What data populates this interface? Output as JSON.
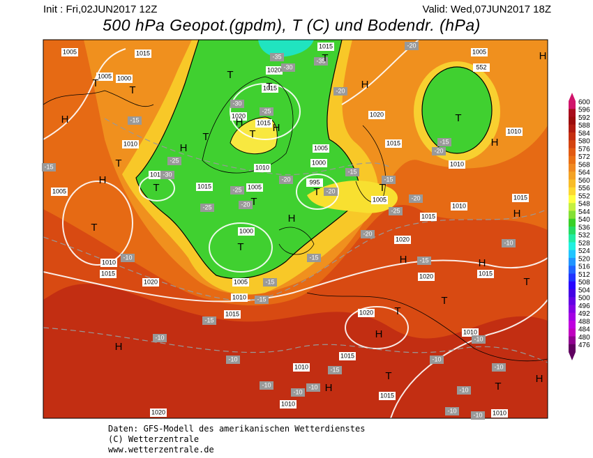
{
  "header": {
    "init": "Init : Fri,02JUN2017 12Z",
    "valid": "Valid: Wed,07JUN2017 18Z",
    "title": "500 hPa Geopot.(gpdm), T (C) und Bodendr. (hPa)"
  },
  "colorbar": {
    "ticks": [
      600,
      596,
      592,
      588,
      584,
      580,
      576,
      572,
      568,
      564,
      560,
      556,
      552,
      548,
      544,
      540,
      536,
      532,
      528,
      524,
      520,
      516,
      512,
      508,
      504,
      500,
      496,
      492,
      488,
      484,
      480,
      476
    ],
    "colors": [
      "#d0146a",
      "#a80c1c",
      "#9c0c0c",
      "#b01a10",
      "#c42e10",
      "#d44410",
      "#e25a12",
      "#ea7014",
      "#f08820",
      "#f4a224",
      "#f8bc28",
      "#fcd830",
      "#ffff40",
      "#c4f040",
      "#84e034",
      "#38d028",
      "#24dc64",
      "#20eca4",
      "#20f0e0",
      "#20c4ff",
      "#2094ff",
      "#2064ff",
      "#2034ff",
      "#2804ff",
      "#4400e4",
      "#6400e4",
      "#8400e4",
      "#a400e4",
      "#c000e0",
      "#c000c0",
      "#900090",
      "#600060"
    ]
  },
  "map": {
    "pressure_labels": [
      1005,
      1015,
      1005,
      1000,
      1015,
      1020,
      1015,
      1020,
      1015,
      1010,
      1005,
      1000,
      1010,
      1010,
      1015,
      1005,
      995,
      1005,
      1000,
      1010,
      1015,
      1020,
      1005,
      1010,
      1015,
      1020,
      1010,
      1010,
      1015,
      1015,
      1010,
      1020,
      1010,
      1005,
      1020,
      1015,
      1010,
      1010,
      1010,
      1015,
      1015,
      1020,
      1020,
      1015,
      1005,
      552
    ],
    "temperature_labels": [
      -35,
      -30,
      -35,
      -20,
      -30,
      -25,
      -15,
      -25,
      -30,
      -20,
      -25,
      -15,
      -20,
      -25,
      -20,
      -20,
      -25,
      -20,
      -15,
      -10,
      -15,
      -15,
      -15,
      -10,
      -10,
      -15,
      -10,
      -10,
      -10,
      -15,
      -10,
      -10,
      -10,
      -10,
      -15,
      -20,
      -20,
      -15,
      -10,
      -10,
      -10,
      -15
    ],
    "pressure_centers": [
      "H",
      "T",
      "T",
      "T",
      "H",
      "T",
      "T",
      "H",
      "T",
      "T",
      "T",
      "T",
      "H",
      "H",
      "T",
      "T",
      "H",
      "T",
      "T",
      "H",
      "T",
      "H",
      "H",
      "T",
      "H",
      "H",
      "H",
      "T",
      "T",
      "T",
      "H",
      "H",
      "T",
      "H",
      "T",
      "H"
    ]
  },
  "footer": {
    "line1": "Daten: GFS-Modell des amerikanischen Wetterdienstes",
    "line2": "(C) Wetterzentrale",
    "line3": "www.wetterzentrale.de"
  }
}
